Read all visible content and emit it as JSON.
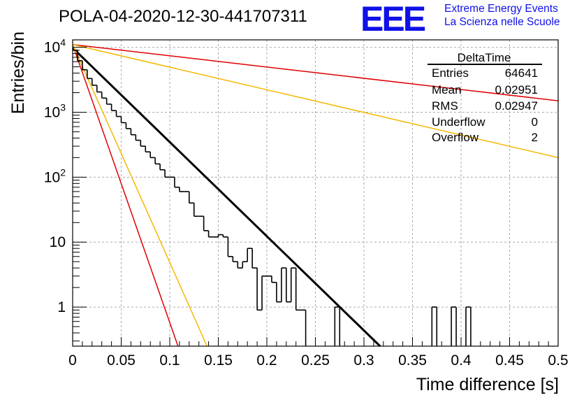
{
  "header": {
    "title": "POLA-04-2020-12-30-441707311",
    "logo_text": "EEE",
    "logo_line1": "Extreme Energy Events",
    "logo_line2": "La Scienza nelle Scuole",
    "logo_color": "#1010e8"
  },
  "stats": {
    "title": "DeltaTime",
    "rows": [
      {
        "label": "Entries",
        "value": "64641"
      },
      {
        "label": "Mean",
        "value": "0.02951"
      },
      {
        "label": "RMS",
        "value": "0.02947"
      },
      {
        "label": "Underflow",
        "value": "0"
      },
      {
        "label": "Overflow",
        "value": "2"
      }
    ]
  },
  "chart_data": {
    "type": "line",
    "xlabel": "Time difference [s]",
    "ylabel": "Entries/bin",
    "xlim": [
      0,
      0.5
    ],
    "ylim": [
      0.25,
      13000
    ],
    "yscale": "log",
    "grid": true,
    "x_ticks": [
      "0",
      "0.05",
      "0.1",
      "0.15",
      "0.2",
      "0.25",
      "0.3",
      "0.35",
      "0.4",
      "0.45",
      "0.5"
    ],
    "y_ticks": [
      {
        "value": 1,
        "base": "1",
        "exp": ""
      },
      {
        "value": 10,
        "base": "10",
        "exp": ""
      },
      {
        "value": 100,
        "base": "10",
        "exp": "2"
      },
      {
        "value": 1000,
        "base": "10",
        "exp": "3"
      },
      {
        "value": 10000,
        "base": "10",
        "exp": "4"
      }
    ],
    "histogram": {
      "bin_width": 0.005,
      "color": "#000000",
      "counts": [
        9000,
        6200,
        4500,
        3300,
        2600,
        2050,
        1650,
        1330,
        1060,
        860,
        690,
        560,
        450,
        370,
        300,
        245,
        200,
        160,
        130,
        100,
        100,
        70,
        60,
        60,
        40,
        25,
        25,
        15,
        12,
        12,
        13,
        12,
        6,
        5,
        4,
        5,
        8,
        4,
        0.9,
        3,
        3,
        2.4,
        1.2,
        4,
        1.2,
        4,
        0.9,
        0.9,
        0,
        0,
        0,
        0,
        0,
        0,
        1,
        0,
        0,
        0,
        0,
        0,
        0,
        0,
        0,
        0,
        0,
        0,
        0,
        0,
        0,
        0,
        0,
        0,
        0,
        0,
        1,
        0,
        0,
        0,
        1,
        0,
        0,
        1,
        0,
        0,
        0,
        0,
        0,
        0,
        0,
        0,
        0,
        0,
        0,
        0,
        0,
        0,
        0,
        0,
        0,
        0
      ]
    },
    "series": [
      {
        "color": "#000000",
        "x": [
          0,
          0.3166
        ],
        "y": [
          9800,
          0.25
        ],
        "width": 3
      },
      {
        "color": "#e00000",
        "x": [
          0,
          0.5
        ],
        "y": [
          11000,
          1500
        ],
        "width": 1.5
      },
      {
        "color": "#f5b800",
        "x": [
          0,
          0.5
        ],
        "y": [
          11000,
          200
        ],
        "width": 1.5
      },
      {
        "color": "#e00000",
        "x": [
          0,
          0.1085
        ],
        "y": [
          11000,
          0.25
        ],
        "width": 1.5
      },
      {
        "color": "#f5b800",
        "x": [
          0,
          0.1384
        ],
        "y": [
          11000,
          0.25
        ],
        "width": 1.5
      }
    ]
  }
}
